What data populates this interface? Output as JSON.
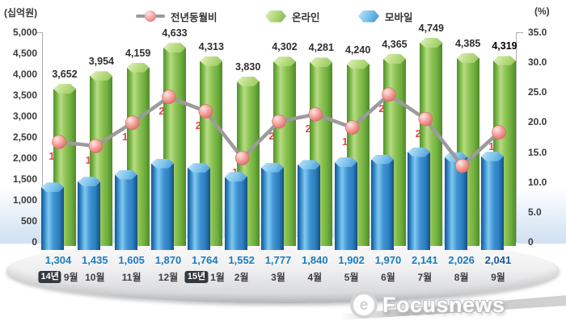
{
  "header": {
    "left_axis_unit": "(십억원)",
    "right_axis_unit": "(%)"
  },
  "legend": [
    {
      "label": "전년동월비",
      "icon": "line-marker"
    },
    {
      "label": "온라인",
      "icon": "green-hex"
    },
    {
      "label": "모바일",
      "icon": "blue-hex"
    }
  ],
  "colors": {
    "online_green": "#79b544",
    "mobile_blue": "#2f83c4",
    "line_gray": "#9b9b9b",
    "marker_pink": "#f0968f",
    "pct_red": "#e0484d",
    "mobile_value_blue": "#1e7cc0"
  },
  "chart_data": {
    "type": "bar+line",
    "categories": [
      {
        "badge": "14년",
        "label": "9월"
      },
      {
        "label": "10월"
      },
      {
        "label": "11월"
      },
      {
        "label": "12월"
      },
      {
        "badge": "15년",
        "label": "1월"
      },
      {
        "label": "2월"
      },
      {
        "label": "3월"
      },
      {
        "label": "4월"
      },
      {
        "label": "5월"
      },
      {
        "label": "6월"
      },
      {
        "label": "7월"
      },
      {
        "label": "8월"
      },
      {
        "label": "9월"
      }
    ],
    "series": [
      {
        "name": "온라인",
        "type": "bar",
        "axis": "left",
        "values": [
          3652,
          3954,
          4159,
          4633,
          4313,
          3830,
          4302,
          4281,
          4240,
          4365,
          4749,
          4385,
          4319
        ],
        "labels": [
          "3,652",
          "3,954",
          "4,159",
          "4,633",
          "4,313",
          "3,830",
          "4,302",
          "4,281",
          "4,240",
          "4,365",
          "4,749",
          "4,385",
          "4,319"
        ]
      },
      {
        "name": "모바일",
        "type": "bar",
        "axis": "left",
        "values": [
          1304,
          1435,
          1605,
          1870,
          1764,
          1552,
          1777,
          1840,
          1902,
          1970,
          2141,
          2026,
          2041
        ],
        "labels": [
          "1,304",
          "1,435",
          "1,605",
          "1,870",
          "1,764",
          "1,552",
          "1,777",
          "1,840",
          "1,902",
          "1,970",
          "2,141",
          "2,026",
          "2,041"
        ]
      },
      {
        "name": "전년동월비",
        "type": "line",
        "axis": "right",
        "values": [
          16.7,
          16.0,
          19.9,
          24.2,
          21.8,
          14.0,
          20.1,
          21.3,
          19.1,
          24.6,
          20.5,
          12.7,
          18.3
        ],
        "labels": [
          "16.7",
          "16.0",
          "19.9",
          "24.2",
          "21.8",
          "14.0",
          "20.1",
          "21.3",
          "19.1",
          "24.6",
          "20.5",
          "12.7",
          "18.3"
        ]
      }
    ],
    "left_axis": {
      "unit": "(십억원)",
      "min": 0,
      "max": 5000,
      "ticks": [
        "5,000",
        "4,500",
        "4,000",
        "3,500",
        "3,000",
        "2,500",
        "2,000",
        "1,500",
        "1,000",
        "500",
        "0"
      ]
    },
    "right_axis": {
      "unit": "(%)",
      "min": 0,
      "max": 35,
      "ticks": [
        "35.0",
        "30.0",
        "25.0",
        "20.0",
        "15.0",
        "10.0",
        "5.0",
        "0"
      ]
    },
    "last_point_emphasized": true,
    "grid": false,
    "legend_position": "top"
  },
  "watermark": {
    "logo": "e",
    "text": "Focusnews"
  }
}
